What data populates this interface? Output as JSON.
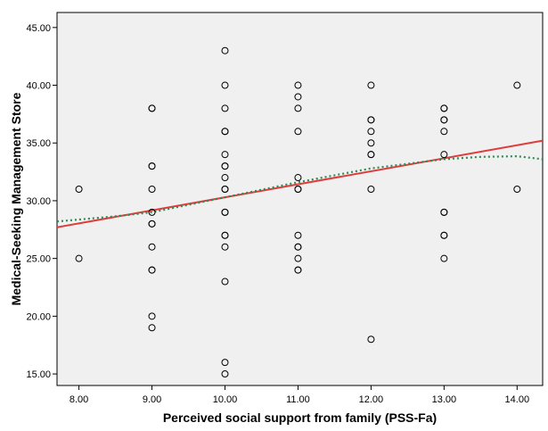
{
  "chart_data": {
    "type": "scatter",
    "title": "",
    "xlabel": "Perceived social support from family (PSS-Fa)",
    "ylabel": "Medical-Seeking Management Store",
    "xlim": [
      7.7,
      14.35
    ],
    "ylim": [
      14.0,
      46.3
    ],
    "x_ticks": [
      "8.00",
      "9.00",
      "10.00",
      "11.00",
      "12.00",
      "13.00",
      "14.00"
    ],
    "y_ticks": [
      "15.00",
      "20.00",
      "25.00",
      "30.00",
      "35.00",
      "40.00",
      "45.00"
    ],
    "grid": false,
    "legend": "none",
    "colors": {
      "plot_background": "#f0f0f0",
      "points": "#000000",
      "linear_fit": "#e03c3c",
      "curve_fit": "#2e8b57"
    },
    "points": [
      [
        8,
        31
      ],
      [
        8,
        25
      ],
      [
        9,
        38
      ],
      [
        9,
        38
      ],
      [
        9,
        33
      ],
      [
        9,
        33
      ],
      [
        9,
        31
      ],
      [
        9,
        29
      ],
      [
        9,
        28
      ],
      [
        9,
        28
      ],
      [
        9,
        26
      ],
      [
        9,
        24
      ],
      [
        9,
        24
      ],
      [
        9,
        20
      ],
      [
        9,
        19
      ],
      [
        10,
        43
      ],
      [
        10,
        40
      ],
      [
        10,
        38
      ],
      [
        10,
        36
      ],
      [
        10,
        36
      ],
      [
        10,
        34
      ],
      [
        10,
        33
      ],
      [
        10,
        33
      ],
      [
        10,
        32
      ],
      [
        10,
        31
      ],
      [
        10,
        31
      ],
      [
        10,
        29
      ],
      [
        10,
        29
      ],
      [
        10,
        27
      ],
      [
        10,
        27
      ],
      [
        10,
        26
      ],
      [
        10,
        23
      ],
      [
        10,
        16
      ],
      [
        10,
        15
      ],
      [
        11,
        40
      ],
      [
        11,
        39
      ],
      [
        11,
        38
      ],
      [
        11,
        36
      ],
      [
        11,
        32
      ],
      [
        11,
        31
      ],
      [
        11,
        31
      ],
      [
        11,
        27
      ],
      [
        11,
        26
      ],
      [
        11,
        26
      ],
      [
        11,
        25
      ],
      [
        11,
        24
      ],
      [
        11,
        24
      ],
      [
        12,
        40
      ],
      [
        12,
        37
      ],
      [
        12,
        37
      ],
      [
        12,
        36
      ],
      [
        12,
        35
      ],
      [
        12,
        34
      ],
      [
        12,
        34
      ],
      [
        12,
        31
      ],
      [
        12,
        18
      ],
      [
        13,
        38
      ],
      [
        13,
        38
      ],
      [
        13,
        37
      ],
      [
        13,
        37
      ],
      [
        13,
        36
      ],
      [
        13,
        34
      ],
      [
        13,
        29
      ],
      [
        13,
        29
      ],
      [
        13,
        27
      ],
      [
        13,
        27
      ],
      [
        13,
        25
      ],
      [
        14,
        40
      ],
      [
        14,
        31
      ]
    ],
    "series": [
      {
        "type": "line",
        "x": [
          7.7,
          14.35
        ],
        "y": [
          27.7,
          35.2
        ]
      },
      {
        "type": "curve",
        "x": [
          7.7,
          8.5,
          9.0,
          10.0,
          11.0,
          12.0,
          13.0,
          13.5,
          14.0,
          14.35
        ],
        "y": [
          28.2,
          28.65,
          29.0,
          30.3,
          31.6,
          32.8,
          33.6,
          33.8,
          33.85,
          33.6
        ]
      }
    ]
  }
}
